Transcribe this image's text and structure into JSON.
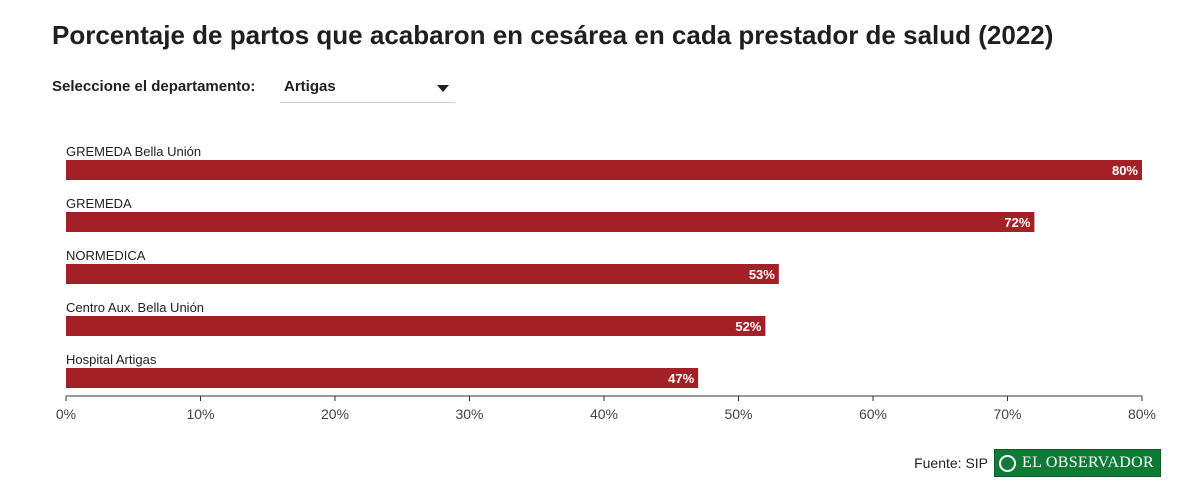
{
  "title": "Porcentaje de partos que acabaron en cesárea en cada prestador de salud (2022)",
  "selector": {
    "label": "Seleccione el departamento:",
    "value": "Artigas"
  },
  "footer": {
    "source": "Fuente: SIP",
    "logo_text": "EL OBSERVADOR"
  },
  "colors": {
    "bar": "#a32126",
    "axis": "#333333"
  },
  "chart_data": {
    "type": "bar",
    "orientation": "horizontal",
    "categories": [
      "GREMEDA Bella Unión",
      "GREMEDA",
      "NORMEDICA",
      "Centro Aux. Bella Unión",
      "Hospital Artigas"
    ],
    "values": [
      80,
      72,
      53,
      52,
      47
    ],
    "value_labels": [
      "80%",
      "72%",
      "53%",
      "52%",
      "47%"
    ],
    "xlim": [
      0,
      80
    ],
    "ticks": [
      0,
      10,
      20,
      30,
      40,
      50,
      60,
      70,
      80
    ],
    "tick_labels": [
      "0%",
      "10%",
      "20%",
      "30%",
      "40%",
      "50%",
      "60%",
      "70%",
      "80%"
    ],
    "grid": false,
    "legend": "none"
  }
}
